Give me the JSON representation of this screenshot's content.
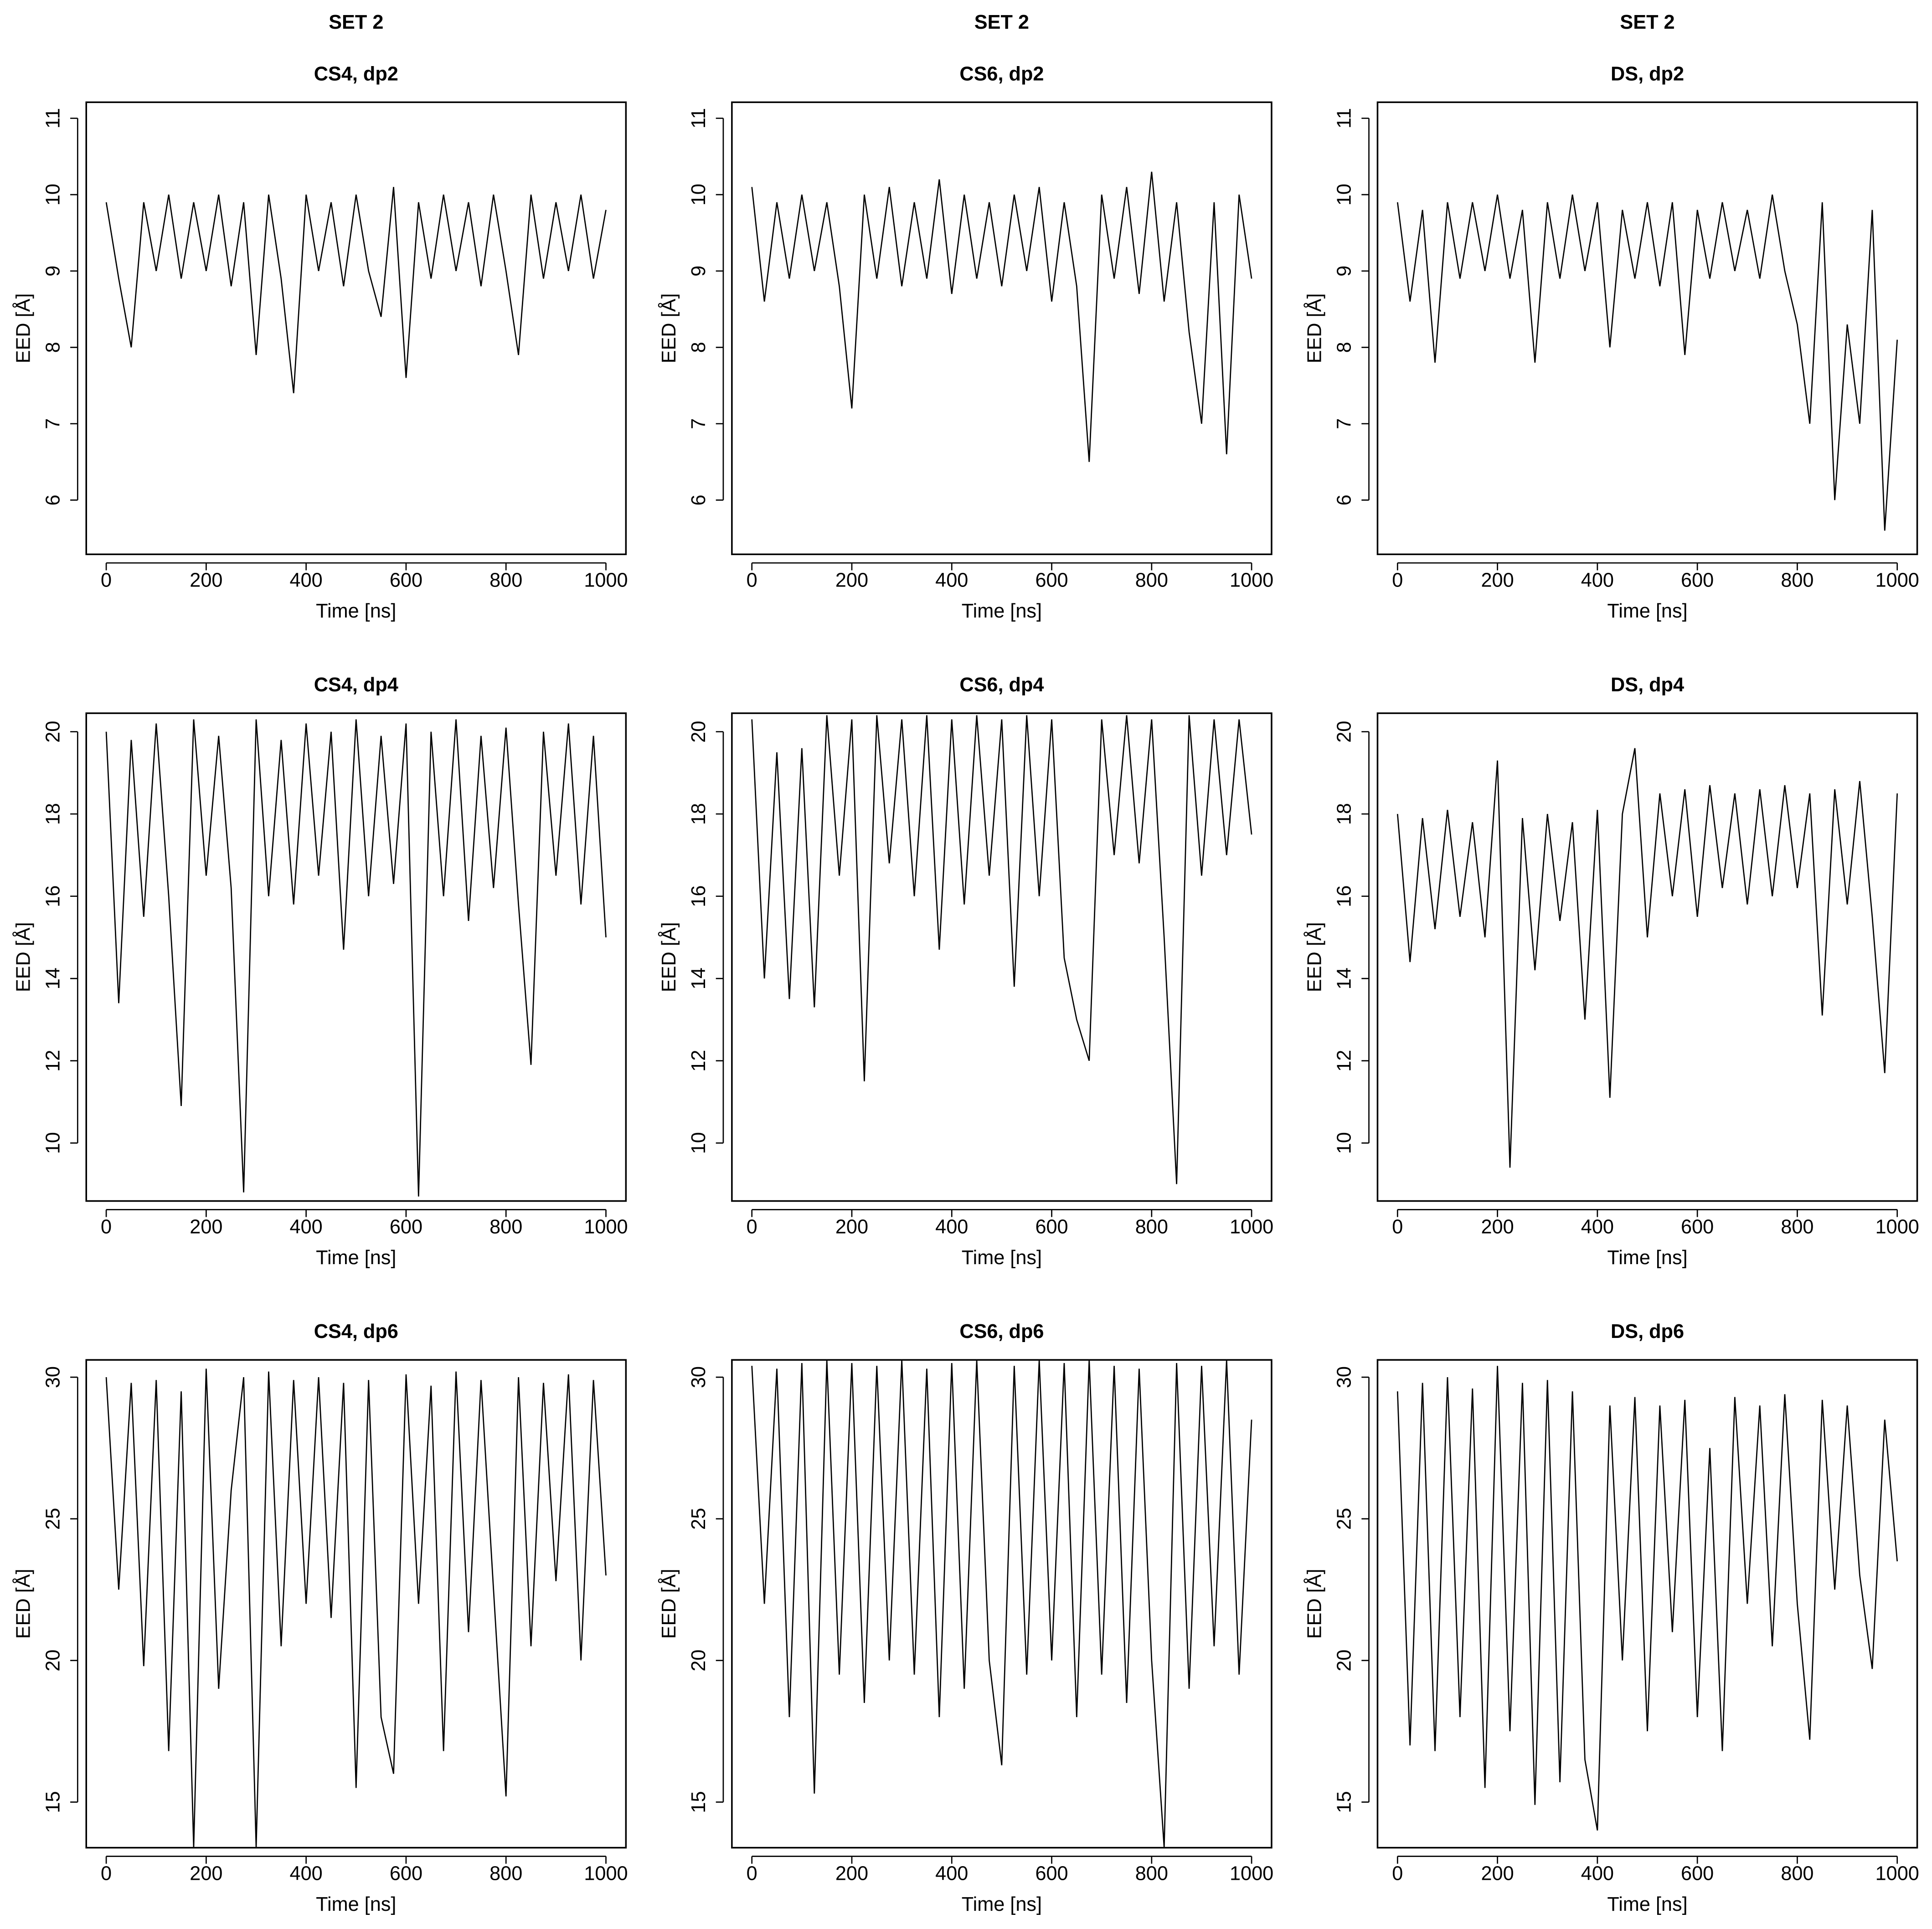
{
  "chart_data": [
    {
      "type": "line",
      "suptitle": "SET 2",
      "title": "CS4, dp2",
      "xlabel": "Time [ns]",
      "ylabel": "EED [Å]",
      "x": [
        0,
        25,
        50,
        75,
        100,
        125,
        150,
        175,
        200,
        225,
        250,
        275,
        300,
        325,
        350,
        375,
        400,
        425,
        450,
        475,
        500,
        525,
        550,
        575,
        600,
        625,
        650,
        675,
        700,
        725,
        750,
        775,
        800,
        825,
        850,
        875,
        900,
        925,
        950,
        975,
        1000
      ],
      "values": [
        9.9,
        8.9,
        8.0,
        9.9,
        9.0,
        10.0,
        8.9,
        9.9,
        9.0,
        10.0,
        8.8,
        9.9,
        7.9,
        10.0,
        8.9,
        7.4,
        10.0,
        9.0,
        9.9,
        8.8,
        10.0,
        9.0,
        8.4,
        10.1,
        7.6,
        9.9,
        8.9,
        10.0,
        9.0,
        9.9,
        8.8,
        10.0,
        9.0,
        7.9,
        10.0,
        8.9,
        9.9,
        9.0,
        10.0,
        8.9,
        9.8
      ],
      "color": "#000000",
      "xlim": [
        -40,
        1040
      ],
      "ylim": [
        5.29,
        11.21
      ],
      "xticks": [
        0,
        200,
        400,
        600,
        800,
        1000
      ],
      "yticks": [
        6,
        7,
        8,
        9,
        10,
        11
      ]
    },
    {
      "type": "line",
      "suptitle": "SET 2",
      "title": "CS6, dp2",
      "xlabel": "Time [ns]",
      "ylabel": "EED [Å]",
      "x": [
        0,
        25,
        50,
        75,
        100,
        125,
        150,
        175,
        200,
        225,
        250,
        275,
        300,
        325,
        350,
        375,
        400,
        425,
        450,
        475,
        500,
        525,
        550,
        575,
        600,
        625,
        650,
        675,
        700,
        725,
        750,
        775,
        800,
        825,
        850,
        875,
        900,
        925,
        950,
        975,
        1000
      ],
      "values": [
        10.1,
        8.6,
        9.9,
        8.9,
        10.0,
        9.0,
        9.9,
        8.8,
        7.2,
        10.0,
        8.9,
        10.1,
        8.8,
        9.9,
        8.9,
        10.2,
        8.7,
        10.0,
        8.9,
        9.9,
        8.8,
        10.0,
        9.0,
        10.1,
        8.6,
        9.9,
        8.8,
        6.5,
        10.0,
        8.9,
        10.1,
        8.7,
        10.3,
        8.6,
        9.9,
        8.2,
        7.0,
        9.9,
        6.6,
        10.0,
        8.9
      ],
      "color": "#000000",
      "xlim": [
        -40,
        1040
      ],
      "ylim": [
        5.29,
        11.21
      ],
      "xticks": [
        0,
        200,
        400,
        600,
        800,
        1000
      ],
      "yticks": [
        6,
        7,
        8,
        9,
        10,
        11
      ]
    },
    {
      "type": "line",
      "suptitle": "SET 2",
      "title": "DS, dp2",
      "xlabel": "Time [ns]",
      "ylabel": "EED [Å]",
      "x": [
        0,
        25,
        50,
        75,
        100,
        125,
        150,
        175,
        200,
        225,
        250,
        275,
        300,
        325,
        350,
        375,
        400,
        425,
        450,
        475,
        500,
        525,
        550,
        575,
        600,
        625,
        650,
        675,
        700,
        725,
        750,
        775,
        800,
        825,
        850,
        875,
        900,
        925,
        950,
        975,
        1000
      ],
      "values": [
        9.9,
        8.6,
        9.8,
        7.8,
        9.9,
        8.9,
        9.9,
        9.0,
        10.0,
        8.9,
        9.8,
        7.8,
        9.9,
        8.9,
        10.0,
        9.0,
        9.9,
        8.0,
        9.8,
        8.9,
        9.9,
        8.8,
        9.9,
        7.9,
        9.8,
        8.9,
        9.9,
        9.0,
        9.8,
        8.9,
        10.0,
        9.0,
        8.3,
        7.0,
        9.9,
        6.0,
        8.3,
        7.0,
        9.8,
        5.6,
        8.1
      ],
      "color": "#000000",
      "xlim": [
        -40,
        1040
      ],
      "ylim": [
        5.29,
        11.21
      ],
      "xticks": [
        0,
        200,
        400,
        600,
        800,
        1000
      ],
      "yticks": [
        6,
        7,
        8,
        9,
        10,
        11
      ]
    },
    {
      "type": "line",
      "title": "CS4, dp4",
      "xlabel": "Time [ns]",
      "ylabel": "EED [Å]",
      "x": [
        0,
        25,
        50,
        75,
        100,
        125,
        150,
        175,
        200,
        225,
        250,
        275,
        300,
        325,
        350,
        375,
        400,
        425,
        450,
        475,
        500,
        525,
        550,
        575,
        600,
        625,
        650,
        675,
        700,
        725,
        750,
        775,
        800,
        825,
        850,
        875,
        900,
        925,
        950,
        975,
        1000
      ],
      "values": [
        20.0,
        13.4,
        19.8,
        15.5,
        20.2,
        16.0,
        10.9,
        20.3,
        16.5,
        19.9,
        16.2,
        8.8,
        20.3,
        16.0,
        19.8,
        15.8,
        20.2,
        16.5,
        20.0,
        14.7,
        20.3,
        16.0,
        19.9,
        16.3,
        20.2,
        8.7,
        20.0,
        16.0,
        20.3,
        15.4,
        19.9,
        16.2,
        20.1,
        15.8,
        11.9,
        20.0,
        16.5,
        20.2,
        15.8,
        19.9,
        15.0
      ],
      "color": "#000000",
      "xlim": [
        -40,
        1040
      ],
      "ylim": [
        8.59,
        20.45
      ],
      "xticks": [
        0,
        200,
        400,
        600,
        800,
        1000
      ],
      "yticks": [
        10,
        12,
        14,
        16,
        18,
        20
      ]
    },
    {
      "type": "line",
      "title": "CS6, dp4",
      "xlabel": "Time [ns]",
      "ylabel": "EED [Å]",
      "x": [
        0,
        25,
        50,
        75,
        100,
        125,
        150,
        175,
        200,
        225,
        250,
        275,
        300,
        325,
        350,
        375,
        400,
        425,
        450,
        475,
        500,
        525,
        550,
        575,
        600,
        625,
        650,
        675,
        700,
        725,
        750,
        775,
        800,
        825,
        850,
        875,
        900,
        925,
        950,
        975,
        1000
      ],
      "values": [
        20.3,
        14.0,
        19.5,
        13.5,
        19.6,
        13.3,
        20.4,
        16.5,
        20.3,
        11.5,
        20.4,
        16.8,
        20.3,
        16.0,
        20.4,
        14.7,
        20.3,
        15.8,
        20.4,
        16.5,
        20.3,
        13.8,
        20.4,
        16.0,
        20.3,
        14.5,
        13.0,
        12.0,
        20.3,
        17.0,
        20.4,
        16.8,
        20.3,
        15.0,
        9.0,
        20.4,
        16.5,
        20.3,
        17.0,
        20.3,
        17.5
      ],
      "color": "#000000",
      "xlim": [
        -40,
        1040
      ],
      "ylim": [
        8.59,
        20.45
      ],
      "xticks": [
        0,
        200,
        400,
        600,
        800,
        1000
      ],
      "yticks": [
        10,
        12,
        14,
        16,
        18,
        20
      ]
    },
    {
      "type": "line",
      "title": "DS, dp4",
      "xlabel": "Time [ns]",
      "ylabel": "EED [Å]",
      "x": [
        0,
        25,
        50,
        75,
        100,
        125,
        150,
        175,
        200,
        225,
        250,
        275,
        300,
        325,
        350,
        375,
        400,
        425,
        450,
        475,
        500,
        525,
        550,
        575,
        600,
        625,
        650,
        675,
        700,
        725,
        750,
        775,
        800,
        825,
        850,
        875,
        900,
        925,
        950,
        975,
        1000
      ],
      "values": [
        18.0,
        14.4,
        17.9,
        15.2,
        18.1,
        15.5,
        17.8,
        15.0,
        19.3,
        9.4,
        17.9,
        14.2,
        18.0,
        15.4,
        17.8,
        13.0,
        18.1,
        11.1,
        18.0,
        19.6,
        15.0,
        18.5,
        16.0,
        18.6,
        15.5,
        18.7,
        16.2,
        18.5,
        15.8,
        18.6,
        16.0,
        18.7,
        16.2,
        18.5,
        13.1,
        18.6,
        15.8,
        18.8,
        15.5,
        11.7,
        18.5
      ],
      "color": "#000000",
      "xlim": [
        -40,
        1040
      ],
      "ylim": [
        8.59,
        20.45
      ],
      "xticks": [
        0,
        200,
        400,
        600,
        800,
        1000
      ],
      "yticks": [
        10,
        12,
        14,
        16,
        18,
        20
      ]
    },
    {
      "type": "line",
      "title": "CS4, dp6",
      "xlabel": "Time [ns]",
      "ylabel": "EED [Å]",
      "x": [
        0,
        25,
        50,
        75,
        100,
        125,
        150,
        175,
        200,
        225,
        250,
        275,
        300,
        325,
        350,
        375,
        400,
        425,
        450,
        475,
        500,
        525,
        550,
        575,
        600,
        625,
        650,
        675,
        700,
        725,
        750,
        775,
        800,
        825,
        850,
        875,
        900,
        925,
        950,
        975,
        1000
      ],
      "values": [
        30.0,
        22.5,
        29.8,
        19.8,
        29.9,
        16.8,
        29.5,
        13.4,
        30.3,
        19.0,
        26.0,
        30.0,
        13.4,
        30.2,
        20.5,
        29.9,
        22.0,
        30.0,
        21.5,
        29.8,
        15.5,
        29.9,
        18.0,
        16.0,
        30.1,
        22.0,
        29.7,
        16.8,
        30.2,
        21.0,
        29.9,
        22.5,
        15.2,
        30.0,
        20.5,
        29.8,
        22.8,
        30.1,
        20.0,
        29.9,
        23.0
      ],
      "color": "#000000",
      "xlim": [
        -40,
        1040
      ],
      "ylim": [
        13.39,
        30.61
      ],
      "xticks": [
        0,
        200,
        400,
        600,
        800,
        1000
      ],
      "yticks": [
        15,
        20,
        25,
        30
      ]
    },
    {
      "type": "line",
      "title": "CS6, dp6",
      "xlabel": "Time [ns]",
      "ylabel": "EED [Å]",
      "x": [
        0,
        25,
        50,
        75,
        100,
        125,
        150,
        175,
        200,
        225,
        250,
        275,
        300,
        325,
        350,
        375,
        400,
        425,
        450,
        475,
        500,
        525,
        550,
        575,
        600,
        625,
        650,
        675,
        700,
        725,
        750,
        775,
        800,
        825,
        850,
        875,
        900,
        925,
        950,
        975,
        1000
      ],
      "values": [
        30.4,
        22.0,
        30.3,
        18.0,
        30.5,
        15.3,
        30.6,
        19.5,
        30.5,
        18.5,
        30.4,
        20.0,
        30.6,
        19.5,
        30.3,
        18.0,
        30.5,
        19.0,
        30.6,
        20.0,
        16.3,
        30.4,
        19.5,
        30.6,
        20.0,
        30.5,
        18.0,
        30.6,
        19.5,
        30.4,
        18.5,
        30.3,
        20.0,
        13.4,
        30.5,
        19.0,
        30.4,
        20.5,
        30.6,
        19.5,
        28.5
      ],
      "color": "#000000",
      "xlim": [
        -40,
        1040
      ],
      "ylim": [
        13.39,
        30.61
      ],
      "xticks": [
        0,
        200,
        400,
        600,
        800,
        1000
      ],
      "yticks": [
        15,
        20,
        25,
        30
      ]
    },
    {
      "type": "line",
      "title": "DS, dp6",
      "xlabel": "Time [ns]",
      "ylabel": "EED [Å]",
      "x": [
        0,
        25,
        50,
        75,
        100,
        125,
        150,
        175,
        200,
        225,
        250,
        275,
        300,
        325,
        350,
        375,
        400,
        425,
        450,
        475,
        500,
        525,
        550,
        575,
        600,
        625,
        650,
        675,
        700,
        725,
        750,
        775,
        800,
        825,
        850,
        875,
        900,
        925,
        950,
        975,
        1000
      ],
      "values": [
        29.5,
        17.0,
        29.8,
        16.8,
        30.0,
        18.0,
        29.6,
        15.5,
        30.4,
        17.5,
        29.8,
        14.9,
        29.9,
        15.7,
        29.5,
        16.5,
        14.0,
        29.0,
        20.0,
        29.3,
        17.5,
        29.0,
        21.0,
        29.2,
        18.0,
        27.5,
        16.8,
        29.3,
        22.0,
        29.0,
        20.5,
        29.4,
        22.0,
        17.2,
        29.2,
        22.5,
        29.0,
        23.0,
        19.7,
        28.5,
        23.5
      ],
      "color": "#000000",
      "xlim": [
        -40,
        1040
      ],
      "ylim": [
        13.39,
        30.61
      ],
      "xticks": [
        0,
        200,
        400,
        600,
        800,
        1000
      ],
      "yticks": [
        15,
        20,
        25,
        30
      ]
    }
  ]
}
